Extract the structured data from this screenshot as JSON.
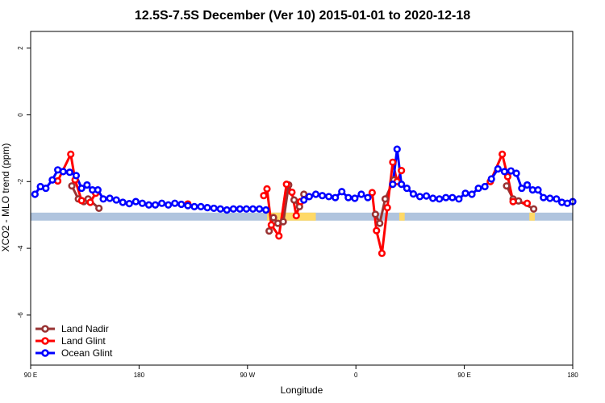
{
  "chart_data": {
    "type": "line",
    "title": "12.5S-7.5S December (Ver 10)   2015-01-01 to 2020-12-18",
    "xlabel": "Longitude",
    "ylabel": "XCO2 - MLO trend (ppm)",
    "xlim": [
      0,
      500
    ],
    "ylim": [
      -7.5,
      2.5
    ],
    "x_ticks": [
      {
        "value": 0,
        "label": "90 E"
      },
      {
        "value": 100,
        "label": "180"
      },
      {
        "value": 200,
        "label": "90 W"
      },
      {
        "value": 300,
        "label": "0"
      },
      {
        "value": 400,
        "label": "90 E"
      },
      {
        "value": 500,
        "label": "180"
      }
    ],
    "y_ticks": [
      {
        "value": 2,
        "label": "2"
      },
      {
        "value": 0,
        "label": "0"
      },
      {
        "value": -2,
        "label": "-2"
      },
      {
        "value": -4,
        "label": "-4"
      },
      {
        "value": -6,
        "label": "-6"
      }
    ],
    "land_band": {
      "y_top": -2.93,
      "y_bottom": -3.17,
      "ocean_color": "#b0c4de",
      "land_color": "#ffd966",
      "land_segments": [
        [
          218,
          263
        ],
        [
          340,
          345
        ],
        [
          460,
          465
        ]
      ]
    },
    "series": [
      {
        "name": "Land Nadir",
        "color": "#993333",
        "points": [
          [
            38,
            -2.13
          ],
          [
            44,
            -2.52
          ],
          [
            49,
            -2.6
          ],
          [
            53,
            -2.52
          ],
          [
            63,
            -2.8
          ],
          [
            220,
            -3.48
          ],
          [
            224,
            -3.08
          ],
          [
            228,
            -3.25
          ],
          [
            233,
            -3.2
          ],
          [
            238,
            -2.1
          ],
          [
            243,
            -2.55
          ],
          [
            248,
            -2.75
          ],
          [
            252,
            -2.38
          ],
          [
            318,
            -2.98
          ],
          [
            322,
            -3.25
          ],
          [
            327,
            -2.52
          ],
          [
            335,
            -1.95
          ],
          [
            439,
            -2.13
          ],
          [
            445,
            -2.52
          ],
          [
            450,
            -2.58
          ],
          [
            464,
            -2.82
          ]
        ]
      },
      {
        "name": "Land Glint",
        "color": "#ff0000",
        "points": [
          [
            25,
            -1.98
          ],
          [
            37,
            -1.18
          ],
          [
            41,
            -1.95
          ],
          [
            47,
            -2.57
          ],
          [
            55,
            -2.62
          ],
          [
            60,
            -2.35
          ],
          [
            145,
            -2.67
          ],
          [
            215,
            -2.42
          ],
          [
            218,
            -2.22
          ],
          [
            222,
            -3.3
          ],
          [
            229,
            -3.63
          ],
          [
            236,
            -2.08
          ],
          [
            241,
            -2.32
          ],
          [
            245,
            -3.02
          ],
          [
            249,
            -2.6
          ],
          [
            315,
            -2.33
          ],
          [
            319,
            -3.47
          ],
          [
            324,
            -4.15
          ],
          [
            329,
            -2.78
          ],
          [
            334,
            -1.42
          ],
          [
            338,
            -2.0
          ],
          [
            342,
            -1.67
          ],
          [
            424,
            -2.0
          ],
          [
            435,
            -1.18
          ],
          [
            440,
            -1.85
          ],
          [
            445,
            -2.6
          ],
          [
            458,
            -2.65
          ]
        ]
      },
      {
        "name": "Ocean Glint",
        "color": "#0000ff",
        "points": [
          [
            4,
            -2.38
          ],
          [
            9,
            -2.15
          ],
          [
            14,
            -2.2
          ],
          [
            20,
            -1.95
          ],
          [
            25,
            -1.65
          ],
          [
            30,
            -1.7
          ],
          [
            36,
            -1.72
          ],
          [
            42,
            -1.82
          ],
          [
            47,
            -2.2
          ],
          [
            52,
            -2.1
          ],
          [
            57,
            -2.25
          ],
          [
            62,
            -2.25
          ],
          [
            67,
            -2.52
          ],
          [
            73,
            -2.5
          ],
          [
            79,
            -2.55
          ],
          [
            85,
            -2.62
          ],
          [
            91,
            -2.66
          ],
          [
            97,
            -2.6
          ],
          [
            103,
            -2.65
          ],
          [
            109,
            -2.7
          ],
          [
            115,
            -2.7
          ],
          [
            121,
            -2.65
          ],
          [
            127,
            -2.7
          ],
          [
            133,
            -2.65
          ],
          [
            139,
            -2.68
          ],
          [
            145,
            -2.72
          ],
          [
            151,
            -2.75
          ],
          [
            157,
            -2.75
          ],
          [
            163,
            -2.78
          ],
          [
            169,
            -2.8
          ],
          [
            175,
            -2.82
          ],
          [
            181,
            -2.85
          ],
          [
            187,
            -2.82
          ],
          [
            193,
            -2.82
          ],
          [
            199,
            -2.82
          ],
          [
            205,
            -2.82
          ],
          [
            211,
            -2.82
          ],
          [
            217,
            -2.85
          ],
          [
            252,
            -2.55
          ],
          [
            257,
            -2.45
          ],
          [
            263,
            -2.38
          ],
          [
            269,
            -2.42
          ],
          [
            275,
            -2.45
          ],
          [
            281,
            -2.48
          ],
          [
            287,
            -2.3
          ],
          [
            293,
            -2.48
          ],
          [
            299,
            -2.5
          ],
          [
            305,
            -2.38
          ],
          [
            311,
            -2.48
          ],
          [
            334,
            -2.08
          ],
          [
            338,
            -1.03
          ],
          [
            342,
            -2.08
          ],
          [
            347,
            -2.2
          ],
          [
            353,
            -2.37
          ],
          [
            359,
            -2.45
          ],
          [
            365,
            -2.43
          ],
          [
            371,
            -2.5
          ],
          [
            377,
            -2.52
          ],
          [
            383,
            -2.48
          ],
          [
            389,
            -2.48
          ],
          [
            395,
            -2.52
          ],
          [
            401,
            -2.35
          ],
          [
            407,
            -2.38
          ],
          [
            413,
            -2.2
          ],
          [
            419,
            -2.15
          ],
          [
            425,
            -1.92
          ],
          [
            431,
            -1.62
          ],
          [
            437,
            -1.7
          ],
          [
            443,
            -1.68
          ],
          [
            448,
            -1.75
          ],
          [
            453,
            -2.2
          ],
          [
            458,
            -2.1
          ],
          [
            463,
            -2.25
          ],
          [
            468,
            -2.25
          ],
          [
            473,
            -2.48
          ],
          [
            479,
            -2.5
          ],
          [
            485,
            -2.52
          ],
          [
            490,
            -2.62
          ],
          [
            495,
            -2.65
          ],
          [
            500,
            -2.6
          ]
        ]
      }
    ],
    "legend": {
      "position": "bottom-left",
      "entries": [
        "Land Nadir",
        "Land Glint",
        "Ocean Glint"
      ]
    }
  }
}
